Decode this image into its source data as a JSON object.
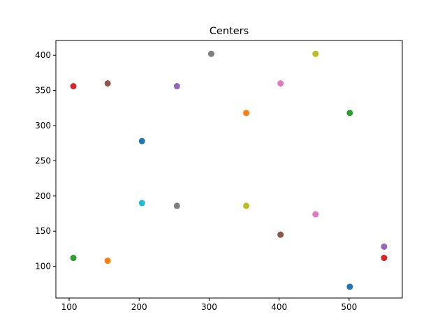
{
  "chart_data": {
    "type": "scatter",
    "title": "Centers",
    "xlabel": "",
    "ylabel": "",
    "xlim": [
      81,
      576
    ],
    "ylim": [
      55,
      421
    ],
    "xticks": [
      100,
      200,
      300,
      400,
      500
    ],
    "yticks": [
      100,
      150,
      200,
      250,
      300,
      350,
      400
    ],
    "grid": false,
    "points": [
      {
        "x": 204,
        "y": 278,
        "color": "#1f77b4"
      },
      {
        "x": 353,
        "y": 318,
        "color": "#ff7f0e"
      },
      {
        "x": 501,
        "y": 318,
        "color": "#2ca02c"
      },
      {
        "x": 106,
        "y": 356,
        "color": "#d62728"
      },
      {
        "x": 254,
        "y": 356,
        "color": "#9467bd"
      },
      {
        "x": 155,
        "y": 360,
        "color": "#8c564b"
      },
      {
        "x": 402,
        "y": 360,
        "color": "#e377c2"
      },
      {
        "x": 303,
        "y": 402,
        "color": "#7f7f7f"
      },
      {
        "x": 452,
        "y": 402,
        "color": "#bcbd22"
      },
      {
        "x": 204,
        "y": 190,
        "color": "#17becf"
      },
      {
        "x": 501,
        "y": 71,
        "color": "#1f77b4"
      },
      {
        "x": 155,
        "y": 108,
        "color": "#ff7f0e"
      },
      {
        "x": 106,
        "y": 112,
        "color": "#2ca02c"
      },
      {
        "x": 550,
        "y": 112,
        "color": "#d62728"
      },
      {
        "x": 550,
        "y": 128,
        "color": "#9467bd"
      },
      {
        "x": 402,
        "y": 145,
        "color": "#8c564b"
      },
      {
        "x": 452,
        "y": 174,
        "color": "#e377c2"
      },
      {
        "x": 254,
        "y": 186,
        "color": "#7f7f7f"
      },
      {
        "x": 353,
        "y": 186,
        "color": "#bcbd22"
      }
    ]
  }
}
